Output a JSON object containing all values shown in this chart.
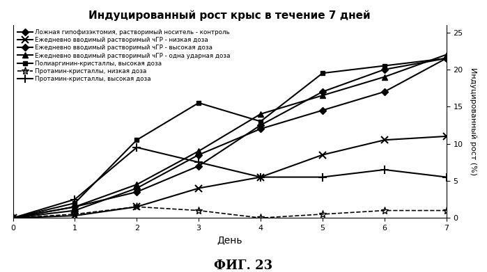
{
  "title": "Индуцированный рост крыс в течение 7 дней",
  "xlabel": "День",
  "ylabel": "Индуцированный рост (%)",
  "fig_label": "ФИГ. 23",
  "xlim": [
    0,
    7
  ],
  "ylim": [
    0,
    26
  ],
  "yticks": [
    0,
    5,
    10,
    15,
    20,
    25
  ],
  "xticks": [
    0,
    1,
    2,
    3,
    4,
    5,
    6,
    7
  ],
  "series": [
    {
      "label": "Ложная гипофизэктомия, растворимый носитель - контроль",
      "x": [
        0,
        1,
        2,
        3,
        4,
        5,
        6,
        7
      ],
      "y": [
        0,
        1.0,
        4.0,
        8.5,
        12.0,
        14.5,
        17.0,
        21.5
      ],
      "color": "black",
      "linestyle": "-",
      "marker": "D",
      "markersize": 5,
      "linewidth": 1.5
    },
    {
      "label": "Ежедневно вводимый растворимый чГР - низкая доза",
      "x": [
        0,
        1,
        2,
        3,
        4,
        5,
        6,
        7
      ],
      "y": [
        0,
        0.3,
        1.5,
        4.0,
        5.5,
        8.5,
        10.5,
        11.0
      ],
      "color": "black",
      "linestyle": "-",
      "marker": "x",
      "markersize": 7,
      "linewidth": 1.5
    },
    {
      "label": "Ежедневно вводимый растворимый чГР - высокая доза",
      "x": [
        0,
        1,
        2,
        3,
        4,
        5,
        6,
        7
      ],
      "y": [
        0,
        1.5,
        3.5,
        7.0,
        12.5,
        17.0,
        20.0,
        21.5
      ],
      "color": "black",
      "linestyle": "-",
      "marker": "D",
      "markersize": 5,
      "linewidth": 1.5
    },
    {
      "label": "Ежедневно вводимый растворимый чГР - одна ударная доза",
      "x": [
        0,
        1,
        2,
        3,
        4,
        5,
        6,
        7
      ],
      "y": [
        0,
        1.5,
        4.5,
        9.0,
        14.0,
        16.5,
        19.0,
        22.0
      ],
      "color": "black",
      "linestyle": "-",
      "marker": "^",
      "markersize": 6,
      "linewidth": 1.5
    },
    {
      "label": "Полиаргинин-кристаллы, высокая доза",
      "x": [
        0,
        1,
        2,
        3,
        4,
        5,
        6,
        7
      ],
      "y": [
        0,
        2.0,
        10.5,
        15.5,
        13.0,
        19.5,
        20.5,
        21.5
      ],
      "color": "black",
      "linestyle": "-",
      "marker": "s",
      "markersize": 5,
      "linewidth": 1.5
    },
    {
      "label": "Протамин-кристаллы, низкая доза",
      "x": [
        0,
        1,
        2,
        3,
        4,
        5,
        6,
        7
      ],
      "y": [
        0,
        0.5,
        1.5,
        1.0,
        0.0,
        0.5,
        1.0,
        1.0
      ],
      "color": "black",
      "linestyle": "--",
      "marker": "*",
      "markersize": 8,
      "linewidth": 1.2
    },
    {
      "label": "Протамин-кристаллы, высокая доза",
      "x": [
        0,
        1,
        2,
        3,
        4,
        5,
        6,
        7
      ],
      "y": [
        0,
        2.5,
        9.5,
        7.5,
        5.5,
        5.5,
        6.5,
        5.5
      ],
      "color": "black",
      "linestyle": "-",
      "marker": "+",
      "markersize": 9,
      "linewidth": 1.5
    }
  ]
}
